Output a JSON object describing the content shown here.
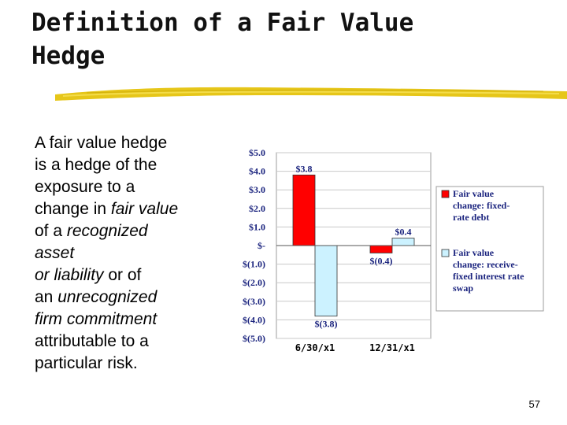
{
  "slide": {
    "title_line1": "Definition of a Fair Value",
    "title_line2": "Hedge",
    "body": [
      {
        "text": "A fair value hedge",
        "italic": false,
        "br": true
      },
      {
        "text": "is a hedge of the",
        "italic": false,
        "br": true
      },
      {
        "text": "exposure to a",
        "italic": false,
        "br": true
      },
      {
        "text": "change in ",
        "italic": false,
        "br": false
      },
      {
        "text": "fair value",
        "italic": true,
        "br": true
      },
      {
        "text": "of a ",
        "italic": false,
        "br": false
      },
      {
        "text": "recognized",
        "italic": true,
        "br": true
      },
      {
        "text": "asset",
        "italic": true,
        "br": true
      },
      {
        "text": "or liability",
        "italic": true,
        "br": false
      },
      {
        "text": " or of",
        "italic": false,
        "br": true
      },
      {
        "text": "an ",
        "italic": false,
        "br": false
      },
      {
        "text": "unrecognized",
        "italic": true,
        "br": true
      },
      {
        "text": "firm commitment",
        "italic": true,
        "br": true
      },
      {
        "text": "attributable to a",
        "italic": false,
        "br": true
      },
      {
        "text": "particular risk.",
        "italic": false,
        "br": false
      }
    ],
    "page_number": "57"
  },
  "chart_data": {
    "type": "bar",
    "categories": [
      "6/30/x1",
      "12/31/x1"
    ],
    "series": [
      {
        "name": "Fair value change: fixed-rate debt",
        "values": [
          3.8,
          -0.4
        ],
        "color": "#ff0000",
        "data_labels": [
          "$3.8",
          "$(0.4)"
        ]
      },
      {
        "name": "Fair value change: receive-fixed interest rate swap",
        "values": [
          -3.8,
          0.4
        ],
        "color": "#ccf2ff",
        "data_labels": [
          "$(3.8)",
          "$0.4"
        ]
      }
    ],
    "ylim": [
      -5,
      5
    ],
    "yticks": [
      5,
      4,
      3,
      2,
      1,
      0,
      -1,
      -2,
      -3,
      -4,
      -5
    ],
    "ytick_labels": [
      "$5.0",
      "$4.0",
      "$3.0",
      "$2.0",
      "$1.0",
      "$-",
      "$(1.0)",
      "$(2.0)",
      "$(3.0)",
      "$(4.0)",
      "$(5.0)"
    ],
    "legend_lines": [
      [
        "Fair value",
        "change:  fixed-",
        "rate debt"
      ],
      [
        "Fair value",
        "change:  receive-",
        "fixed interest rate",
        "swap"
      ]
    ],
    "legend_position": "right",
    "grid": true
  }
}
